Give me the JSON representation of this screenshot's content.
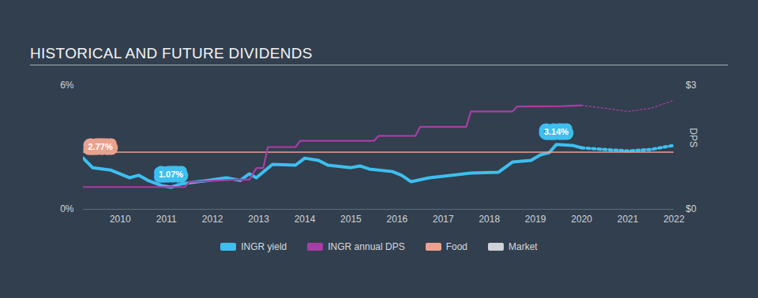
{
  "chart_data": {
    "type": "line",
    "title": "HISTORICAL AND FUTURE DIVIDENDS",
    "xlim": [
      2009.2,
      2022
    ],
    "xticks": [
      2010,
      2011,
      2012,
      2013,
      2014,
      2015,
      2016,
      2017,
      2018,
      2019,
      2020,
      2021,
      2022
    ],
    "ylim": [
      0,
      6
    ],
    "yticks": [
      {
        "value": 0,
        "label": "0%"
      },
      {
        "value": 6,
        "label": "6%"
      }
    ],
    "y2lim": [
      0,
      3
    ],
    "y2ticks": [
      {
        "value": 0,
        "label": "$0"
      },
      {
        "value": 3,
        "label": "$3"
      }
    ],
    "y2label": "DPS",
    "grid": false,
    "legend": "bottom",
    "series": [
      {
        "name": "INGR yield",
        "color": "#3dbff0",
        "axis": "y",
        "line_style": "solid",
        "x": [
          2009.2,
          2009.4,
          2009.8,
          2010.2,
          2010.4,
          2010.6,
          2010.9,
          2011.1,
          2011.3,
          2011.8,
          2012.3,
          2012.6,
          2012.8,
          2012.95,
          2013.3,
          2013.8,
          2014.0,
          2014.3,
          2014.5,
          2015.0,
          2015.2,
          2015.4,
          2015.9,
          2016.1,
          2016.3,
          2016.7,
          2017.2,
          2017.6,
          2018.2,
          2018.5,
          2018.9,
          2019.1,
          2019.3,
          2019.45,
          2019.8,
          2020.0
        ],
        "values": [
          2.48,
          2.02,
          1.9,
          1.53,
          1.65,
          1.4,
          1.15,
          1.07,
          1.22,
          1.37,
          1.53,
          1.4,
          1.72,
          1.53,
          2.18,
          2.14,
          2.48,
          2.37,
          2.14,
          2.02,
          2.1,
          1.95,
          1.83,
          1.65,
          1.34,
          1.53,
          1.65,
          1.76,
          1.8,
          2.29,
          2.37,
          2.63,
          2.75,
          3.14,
          3.1,
          2.98
        ]
      },
      {
        "name": "INGR yield",
        "color": "#3dbff0",
        "axis": "y",
        "line_style": "dotted",
        "x": [
          2020.0,
          2020.5,
          2021.0,
          2021.5,
          2022.0
        ],
        "values": [
          2.98,
          2.9,
          2.83,
          2.9,
          3.1
        ]
      },
      {
        "name": "INGR annual DPS",
        "color": "#a83da5",
        "axis": "y2",
        "line_style": "solid",
        "x": [
          2009.2,
          2011.4,
          2011.5,
          2012.5,
          2012.8,
          2012.95,
          2013.1,
          2013.2,
          2013.8,
          2013.9,
          2015.5,
          2015.6,
          2016.4,
          2016.5,
          2017.5,
          2017.6,
          2018.5,
          2018.6,
          2019.6,
          2020.0
        ],
        "values": [
          0.54,
          0.54,
          0.66,
          0.72,
          0.72,
          1.0,
          1.0,
          1.51,
          1.51,
          1.66,
          1.66,
          1.78,
          1.78,
          2.0,
          2.0,
          2.37,
          2.37,
          2.49,
          2.5,
          2.52
        ]
      },
      {
        "name": "INGR annual DPS",
        "color": "#a83da5",
        "axis": "y2",
        "line_style": "dotted",
        "x": [
          2020.0,
          2020.5,
          2021.0,
          2021.5,
          2022.0
        ],
        "values": [
          2.52,
          2.45,
          2.37,
          2.45,
          2.64
        ]
      },
      {
        "name": "Food",
        "color": "#e9a28f",
        "axis": "y",
        "line_style": "solid",
        "x": [
          2009.2,
          2022
        ],
        "values": [
          2.77,
          2.77
        ]
      },
      {
        "name": "Market",
        "color": "#cfd3d8",
        "axis": "y",
        "line_style": "solid",
        "x": [],
        "values": []
      }
    ],
    "annotations": [
      {
        "text": "2.77%",
        "x": 2009.2,
        "y": 2.77,
        "series": "Food"
      },
      {
        "text": "1.07%",
        "x": 2011.1,
        "y": 1.07,
        "series": "INGR yield"
      },
      {
        "text": "3.14%",
        "x": 2019.45,
        "y": 3.14,
        "series": "INGR yield"
      }
    ]
  }
}
